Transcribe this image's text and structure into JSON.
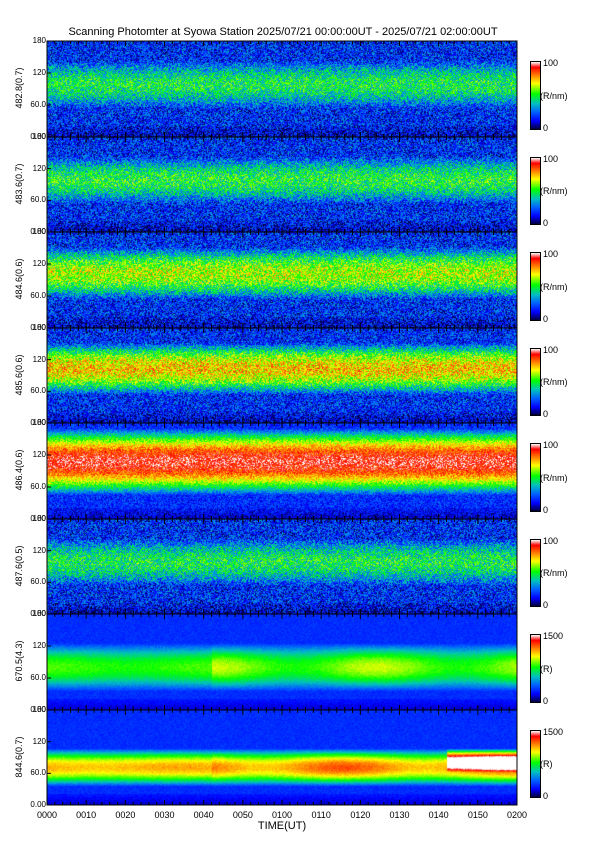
{
  "chart_data": {
    "type": "heatmap",
    "title": "Scanning Photomter at Syowa Station 2025/07/21 00:00:00UT - 2025/07/21 02:00:00UT",
    "xlabel": "TIME(UT)",
    "x_ticks": [
      "0000",
      "0010",
      "0020",
      "0030",
      "0040",
      "0050",
      "0100",
      "0110",
      "0120",
      "0130",
      "0140",
      "0150",
      "0200"
    ],
    "y_ticks": [
      "0.00",
      "60.0",
      "120",
      "180"
    ],
    "ylim": [
      0,
      180
    ],
    "panels": [
      {
        "ylabel": "482.8(0.7)",
        "cbar_max": "100",
        "cbar_min": "0",
        "unit": "(R/nm)",
        "band_low": 0.3,
        "band_high": 0.8,
        "band_strength": 0.3,
        "noise": 0.35
      },
      {
        "ylabel": "483.6(0.7)",
        "cbar_max": "100",
        "cbar_min": "0",
        "unit": "(R/nm)",
        "band_low": 0.3,
        "band_high": 0.8,
        "band_strength": 0.32,
        "noise": 0.35
      },
      {
        "ylabel": "484.6(0.6)",
        "cbar_max": "100",
        "cbar_min": "0",
        "unit": "(R/nm)",
        "band_low": 0.3,
        "band_high": 0.85,
        "band_strength": 0.45,
        "noise": 0.35
      },
      {
        "ylabel": "485.6(0.6)",
        "cbar_max": "100",
        "cbar_min": "0",
        "unit": "(R/nm)",
        "band_low": 0.3,
        "band_high": 0.85,
        "band_strength": 0.55,
        "noise": 0.33
      },
      {
        "ylabel": "486.4(0.6)",
        "cbar_max": "100",
        "cbar_min": "0",
        "unit": "(R/nm)",
        "band_low": 0.25,
        "band_high": 0.95,
        "band_strength": 0.75,
        "noise": 0.2
      },
      {
        "ylabel": "487.6(0.5)",
        "cbar_max": "100",
        "cbar_min": "0",
        "unit": "(R/nm)",
        "band_low": 0.3,
        "band_high": 0.8,
        "band_strength": 0.3,
        "noise": 0.35
      },
      {
        "ylabel": "670.5(4.3)",
        "cbar_max": "1500",
        "cbar_min": "0",
        "unit": "(R)",
        "band_low": 0.2,
        "band_high": 0.7,
        "band_strength": 0.35,
        "noise": 0.06
      },
      {
        "ylabel": "844.6(0.7)",
        "cbar_max": "1500",
        "cbar_min": "0",
        "unit": "(R)",
        "band_low": 0.2,
        "band_high": 0.6,
        "band_strength": 0.55,
        "noise": 0.06
      }
    ]
  }
}
